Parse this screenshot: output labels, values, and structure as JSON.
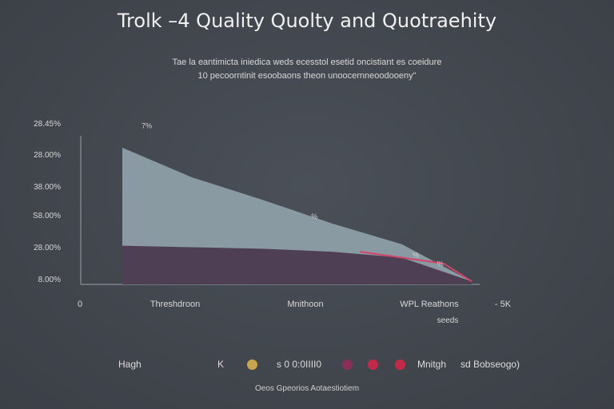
{
  "chart_data": {
    "type": "area",
    "title": "Trolk –4 Quality Quolty and Quotraehity",
    "subtitle_lines": [
      "Tae la eantimicta iniedica weds ecesstol esetid oncistiant es coeidure",
      "10 pecoorntinit esoobaons theon unoocernneoodooeny\""
    ],
    "ylabel": "",
    "y_tick_labels": [
      "8.00%",
      "28.00%",
      "S8.00%",
      "38.00%",
      "28.00%",
      "28.45%"
    ],
    "x_tick_labels": [
      "0",
      "Threshdroon",
      "Mnithoon",
      "WPL Reathons",
      "- 5K"
    ],
    "x_sub_label": "seeds",
    "ylim": [
      0,
      100
    ],
    "x": [
      0,
      20,
      40,
      60,
      80,
      100
    ],
    "series": [
      {
        "name": "",
        "color": "#8e9ea8",
        "values": [
          92,
          72,
          57,
          41,
          27,
          2
        ]
      },
      {
        "name": "",
        "color": "#4e3f55",
        "values": [
          26,
          25,
          24,
          22,
          18,
          2
        ]
      }
    ],
    "highlight_line": {
      "color": "#d2456a",
      "x": [
        68,
        80,
        92,
        100
      ],
      "values": [
        22,
        18,
        14,
        2
      ]
    },
    "annotations": [
      {
        "text": "7%",
        "x": 7,
        "y": 105
      },
      {
        "text": "%",
        "x": 55,
        "y": 44
      },
      {
        "text": "%",
        "x": 84,
        "y": 18
      },
      {
        "text": "%",
        "x": 91,
        "y": 12
      }
    ],
    "grid": false,
    "legend_position": "bottom"
  },
  "legend": {
    "label_1": "Hagh",
    "label_2": "K",
    "label_3": "s 0 0:0IIII0",
    "label_4": "Mnitgh",
    "label_5": "sd Bobseogo)",
    "colors": [
      "#c9a34e",
      "#8a2f56",
      "#c42949",
      "#c42949"
    ]
  },
  "source": "Oeos Gpeorios Aotaestiotiem"
}
